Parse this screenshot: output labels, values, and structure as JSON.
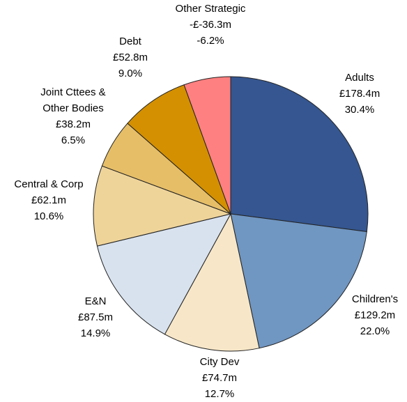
{
  "chart_data": {
    "type": "pie",
    "categories": [
      "Adults",
      "Children's",
      "City Dev",
      "E&N",
      "Central & Corp",
      "Joint Cttees & Other Bodies",
      "Debt",
      "Other Strategic"
    ],
    "amount_labels": [
      "£178.4m",
      "£129.2m",
      "£74.7m",
      "£87.5m",
      "£62.1m",
      "£38.2m",
      "£52.8m",
      "-£-36.3m"
    ],
    "values": [
      30.4,
      22.0,
      12.7,
      14.9,
      10.6,
      6.5,
      9.0,
      -6.2
    ],
    "value_labels": [
      "30.4%",
      "22.0%",
      "12.7%",
      "14.9%",
      "10.6%",
      "6.5%",
      "9.0%",
      "-6.2%"
    ],
    "colors": [
      "#355690",
      "#7096c2",
      "#f7e7c8",
      "#d8e2ef",
      "#efd49a",
      "#e6be67",
      "#d49000",
      "#ff8080"
    ]
  }
}
